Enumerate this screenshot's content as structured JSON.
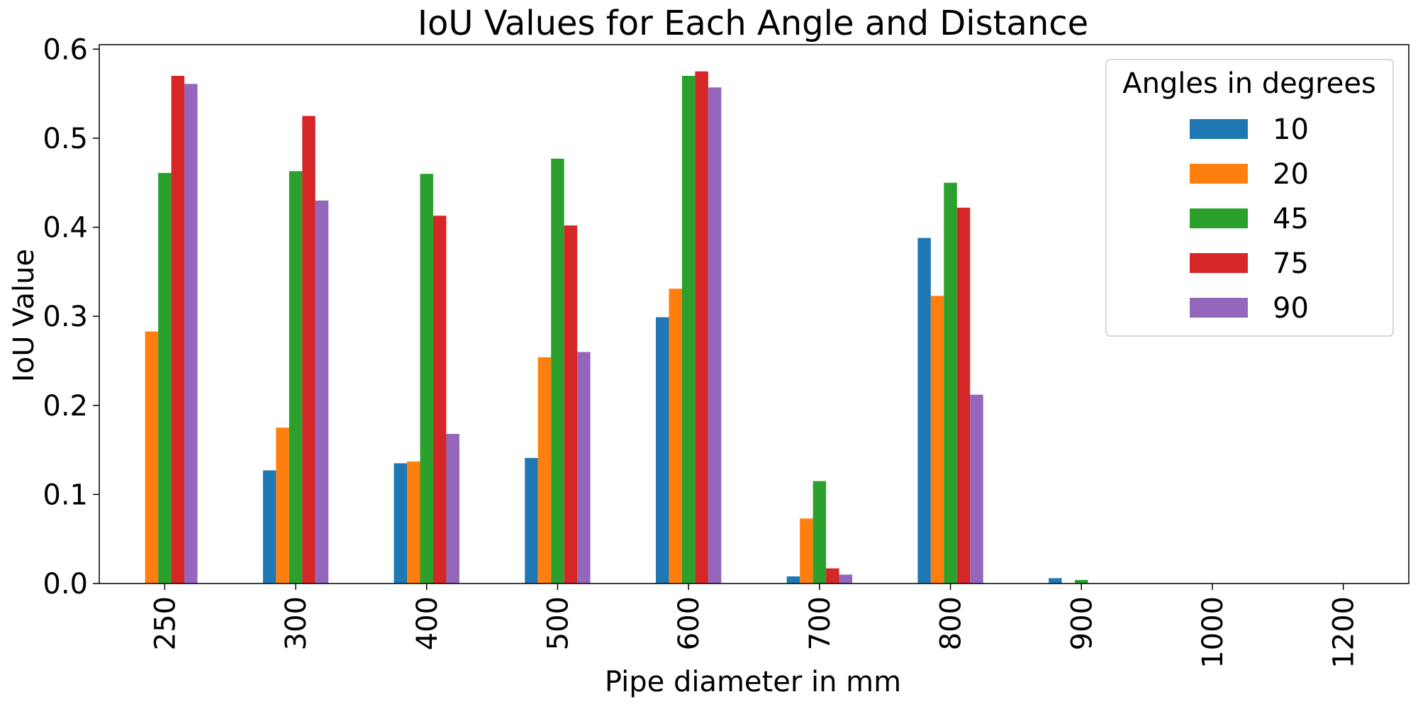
{
  "chart_data": {
    "type": "bar",
    "title": "IoU Values for Each Angle and Distance",
    "xlabel": "Pipe diameter in mm",
    "ylabel": "IoU Value",
    "categories": [
      "250",
      "300",
      "400",
      "500",
      "600",
      "700",
      "800",
      "900",
      "1000",
      "1200"
    ],
    "ylim": [
      0,
      0.605
    ],
    "yticks": [
      0.0,
      0.1,
      0.2,
      0.3,
      0.4,
      0.5,
      0.6
    ],
    "ytick_labels": [
      "0.0",
      "0.1",
      "0.2",
      "0.3",
      "0.4",
      "0.5",
      "0.6"
    ],
    "grid": false,
    "legend": {
      "title": "Angles in degrees",
      "placement": "upper right"
    },
    "series": [
      {
        "name": "10",
        "color": "#1f77b4",
        "values": [
          0,
          0.127,
          0.135,
          0.141,
          0.299,
          0.008,
          0.388,
          0.006,
          0,
          0
        ]
      },
      {
        "name": "20",
        "color": "#ff7f0e",
        "values": [
          0.283,
          0.175,
          0.137,
          0.254,
          0.331,
          0.073,
          0.323,
          0,
          0,
          0
        ]
      },
      {
        "name": "45",
        "color": "#2ca02c",
        "values": [
          0.461,
          0.463,
          0.46,
          0.477,
          0.57,
          0.115,
          0.45,
          0.004,
          0,
          0
        ]
      },
      {
        "name": "75",
        "color": "#d62728",
        "values": [
          0.57,
          0.525,
          0.413,
          0.402,
          0.575,
          0.017,
          0.422,
          0,
          0,
          0
        ]
      },
      {
        "name": "90",
        "color": "#9467bd",
        "values": [
          0.561,
          0.43,
          0.168,
          0.26,
          0.557,
          0.01,
          0.212,
          0,
          0,
          0
        ]
      }
    ]
  }
}
